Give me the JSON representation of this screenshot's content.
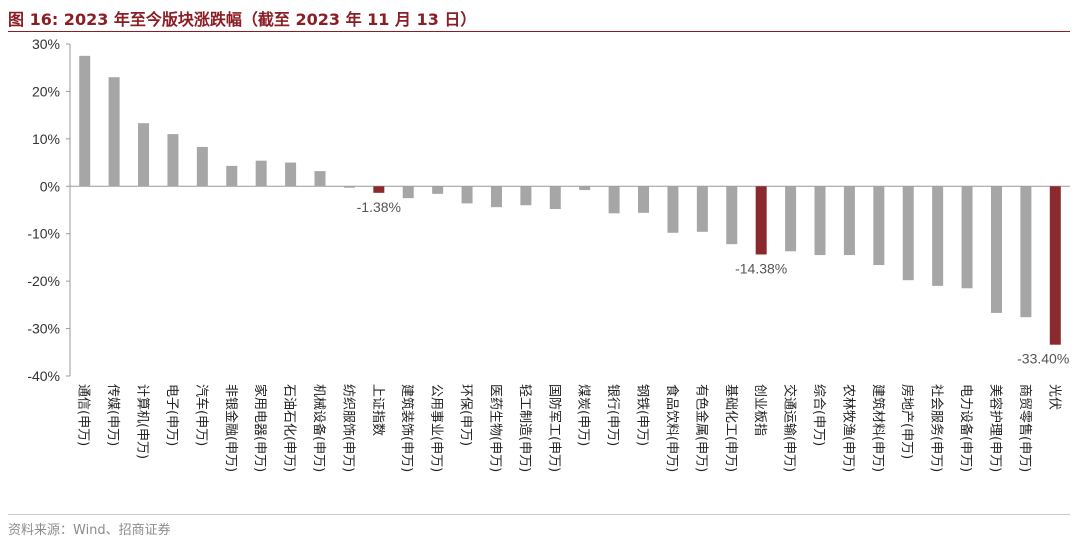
{
  "title": "图 16:  2023 年至今版块涨跌幅（截至 2023 年 11 月 13 日）",
  "source": "资料来源：Wind、招商证券",
  "colors": {
    "default_bar": "#a6a6a6",
    "highlight_bar": "#8b2a2e",
    "title": "#8b1e24"
  },
  "chart_data": {
    "type": "bar",
    "title": "",
    "xlabel": "",
    "ylabel": "",
    "ylim": [
      -40,
      30
    ],
    "yticks": [
      30,
      20,
      10,
      0,
      -10,
      -20,
      -30,
      -40
    ],
    "ytick_labels": [
      "30%",
      "20%",
      "10%",
      "0%",
      "-10%",
      "-20%",
      "-30%",
      "-40%"
    ],
    "grid": false,
    "legend": "none",
    "categories": [
      "通信(申万)",
      "传媒(申万)",
      "计算机(申万)",
      "电子(申万)",
      "汽车(申万)",
      "非银金融(申万)",
      "家用电器(申万)",
      "石油石化(申万)",
      "机械设备(申万)",
      "纺织服饰(申万)",
      "上证指数",
      "建筑装饰(申万)",
      "公用事业(申万)",
      "环保(申万)",
      "医药生物(申万)",
      "轻工制造(申万)",
      "国防军工(申万)",
      "煤炭(申万)",
      "银行(申万)",
      "钢铁(申万)",
      "食品饮料(申万)",
      "有色金属(申万)",
      "基础化工(申万)",
      "创业板指",
      "交通运输(申万)",
      "综合(申万)",
      "农林牧渔(申万)",
      "建筑材料(申万)",
      "房地产(申万)",
      "社会服务(申万)",
      "电力设备(申万)",
      "美容护理(申万)",
      "商贸零售(申万)",
      "光伏"
    ],
    "values": [
      27.5,
      23.0,
      13.3,
      11.0,
      8.3,
      4.3,
      5.4,
      5.0,
      3.2,
      -0.3,
      -1.38,
      -2.5,
      -1.6,
      -3.6,
      -4.4,
      -4.0,
      -4.8,
      -0.8,
      -5.7,
      -5.6,
      -9.8,
      -9.6,
      -12.2,
      -14.38,
      -13.7,
      -14.5,
      -14.5,
      -16.6,
      -19.8,
      -21.0,
      -21.5,
      -26.7,
      -27.6,
      -33.4
    ],
    "highlighted": [
      "上证指数",
      "创业板指",
      "光伏"
    ],
    "data_labels": [
      {
        "category": "上证指数",
        "text": "-1.38%"
      },
      {
        "category": "创业板指",
        "text": "-14.38%"
      },
      {
        "category": "光伏",
        "text": "-33.40%"
      }
    ]
  }
}
